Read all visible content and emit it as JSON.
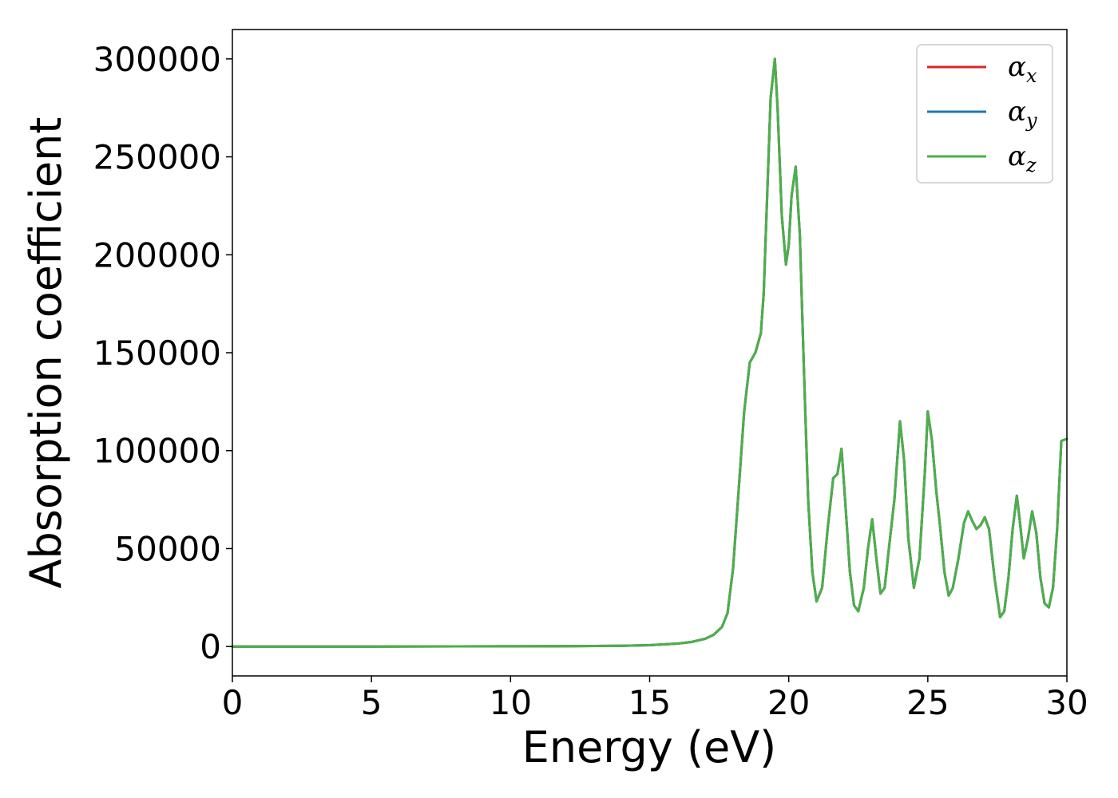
{
  "chart_data": {
    "type": "line",
    "title": "",
    "xlabel": "Energy (eV)",
    "ylabel": "Absorption coefficient",
    "xlim": [
      0,
      30
    ],
    "ylim": [
      -15000,
      315000
    ],
    "xticks": [
      0,
      5,
      10,
      15,
      20,
      25,
      30
    ],
    "yticks": [
      0,
      50000,
      100000,
      150000,
      200000,
      250000,
      300000
    ],
    "grid": false,
    "legend_position": "top-right",
    "series": [
      {
        "name": "α",
        "subscript": "x",
        "color": "#d62728"
      },
      {
        "name": "α",
        "subscript": "y",
        "color": "#1f77b4"
      },
      {
        "name": "α",
        "subscript": "z",
        "color": "#4daf4a"
      }
    ],
    "x": [
      0,
      5,
      10,
      12,
      14,
      15,
      16,
      16.5,
      17,
      17.3,
      17.6,
      17.8,
      18.0,
      18.2,
      18.4,
      18.6,
      18.8,
      19.0,
      19.1,
      19.2,
      19.35,
      19.5,
      19.6,
      19.75,
      19.9,
      20.0,
      20.1,
      20.25,
      20.4,
      20.55,
      20.7,
      20.85,
      21.0,
      21.2,
      21.4,
      21.6,
      21.75,
      21.9,
      22.05,
      22.2,
      22.35,
      22.5,
      22.7,
      22.85,
      23.0,
      23.15,
      23.3,
      23.45,
      23.6,
      23.8,
      24.0,
      24.15,
      24.3,
      24.5,
      24.7,
      24.9,
      25.0,
      25.15,
      25.3,
      25.45,
      25.6,
      25.75,
      25.9,
      26.1,
      26.3,
      26.45,
      26.6,
      26.75,
      26.9,
      27.05,
      27.2,
      27.4,
      27.6,
      27.75,
      27.9,
      28.05,
      28.2,
      28.3,
      28.45,
      28.6,
      28.75,
      28.9,
      29.05,
      29.2,
      29.35,
      29.5,
      29.65,
      29.8,
      30.0
    ],
    "y": [
      0,
      0,
      100,
      200,
      400,
      700,
      1500,
      2300,
      4000,
      6000,
      10000,
      17000,
      40000,
      80000,
      120000,
      145000,
      150000,
      160000,
      180000,
      220000,
      280000,
      300000,
      275000,
      220000,
      195000,
      205000,
      230000,
      245000,
      210000,
      140000,
      75000,
      38000,
      23000,
      30000,
      60000,
      86000,
      88000,
      101000,
      70000,
      38000,
      21000,
      18000,
      30000,
      50000,
      65000,
      45000,
      27000,
      30000,
      50000,
      75000,
      115000,
      95000,
      55000,
      30000,
      45000,
      90000,
      120000,
      105000,
      80000,
      60000,
      38000,
      26000,
      30000,
      45000,
      63000,
      69000,
      64000,
      60000,
      62000,
      66000,
      60000,
      35000,
      15000,
      18000,
      35000,
      60000,
      77000,
      65000,
      45000,
      55000,
      69000,
      58000,
      35000,
      22000,
      20000,
      30000,
      60000,
      105000,
      106000
    ]
  }
}
